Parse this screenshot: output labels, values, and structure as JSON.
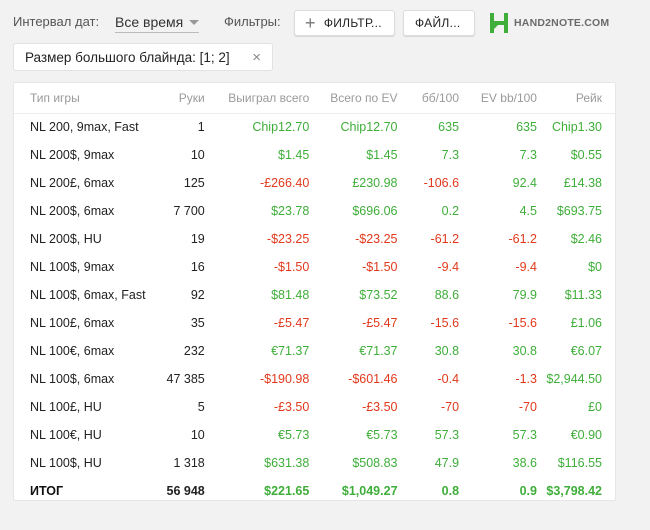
{
  "toolbar": {
    "interval_label": "Интервал дат:",
    "interval_value": "Все время",
    "filters_label": "Фильтры:",
    "filter_button": "ФИЛЬТР...",
    "file_button": "ФАЙЛ...",
    "logo_text": "HAND2NOTE.COM",
    "logo_color": "#3fae3a"
  },
  "active_filter": {
    "label": "Размер большого блайнда: [1; 2]",
    "close": "×"
  },
  "table": {
    "columns": [
      "Тип игры",
      "Руки",
      "Выиграл всего",
      "Всего по EV",
      "бб/100",
      "EV bb/100",
      "Рейк"
    ],
    "rows": [
      [
        "NL 200, 9max, Fast",
        "1",
        "Chip12.70",
        "Chip12.70",
        "635",
        "635",
        "Chip1.30"
      ],
      [
        "NL 200$, 9max",
        "10",
        "$1.45",
        "$1.45",
        "7.3",
        "7.3",
        "$0.55"
      ],
      [
        "NL 200£, 6max",
        "125",
        "-£266.40",
        "£230.98",
        "-106.6",
        "92.4",
        "£14.38"
      ],
      [
        "NL 200$, 6max",
        "7 700",
        "$23.78",
        "$696.06",
        "0.2",
        "4.5",
        "$693.75"
      ],
      [
        "NL 200$, HU",
        "19",
        "-$23.25",
        "-$23.25",
        "-61.2",
        "-61.2",
        "$2.46"
      ],
      [
        "NL 100$, 9max",
        "16",
        "-$1.50",
        "-$1.50",
        "-9.4",
        "-9.4",
        "$0"
      ],
      [
        "NL 100$, 6max, Fast",
        "92",
        "$81.48",
        "$73.52",
        "88.6",
        "79.9",
        "$11.33"
      ],
      [
        "NL 100£, 6max",
        "35",
        "-£5.47",
        "-£5.47",
        "-15.6",
        "-15.6",
        "£1.06"
      ],
      [
        "NL 100€, 6max",
        "232",
        "€71.37",
        "€71.37",
        "30.8",
        "30.8",
        "€6.07"
      ],
      [
        "NL 100$, 6max",
        "47 385",
        "-$190.98",
        "-$601.46",
        "-0.4",
        "-1.3",
        "$2,944.50"
      ],
      [
        "NL 100£, HU",
        "5",
        "-£3.50",
        "-£3.50",
        "-70",
        "-70",
        "£0"
      ],
      [
        "NL 100€, HU",
        "10",
        "€5.73",
        "€5.73",
        "57.3",
        "57.3",
        "€0.90"
      ],
      [
        "NL 100$, HU",
        "1 318",
        "$631.38",
        "$508.83",
        "47.9",
        "38.6",
        "$116.55"
      ]
    ],
    "total": [
      "ИТОГ",
      "56 948",
      "$221.65",
      "$1,049.27",
      "0.8",
      "0.9",
      "$3,798.42"
    ]
  },
  "colors": {
    "positive": "#3fae3a",
    "negative": "#e0391c"
  }
}
